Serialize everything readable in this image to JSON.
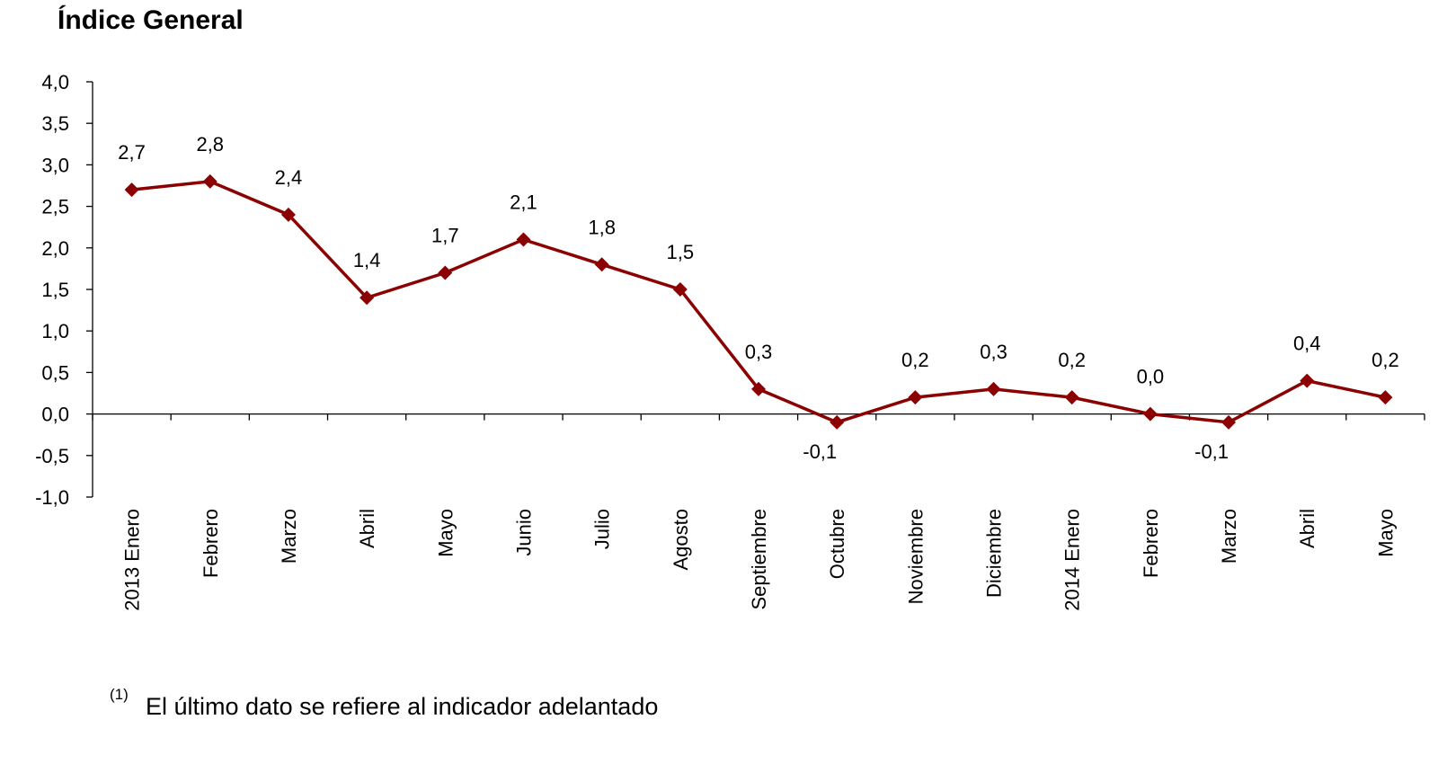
{
  "chart_data": {
    "type": "line",
    "title": "Índice General",
    "categories": [
      "2013 Enero",
      "Febrero",
      "Marzo",
      "Abril",
      "Mayo",
      "Junio",
      "Julio",
      "Agosto",
      "Septiembre",
      "Octubre",
      "Noviembre",
      "Diciembre",
      "2014 Enero",
      "Febrero",
      "Marzo",
      "Abril",
      "Mayo"
    ],
    "series": [
      {
        "color": "#8b0000",
        "values": [
          2.7,
          2.8,
          2.4,
          1.4,
          1.7,
          2.1,
          1.8,
          1.5,
          0.3,
          -0.1,
          0.2,
          0.3,
          0.2,
          0.0,
          -0.1,
          0.4,
          0.2
        ],
        "value_labels": [
          "2,7",
          "2,8",
          "2,4",
          "1,4",
          "1,7",
          "2,1",
          "1,8",
          "1,5",
          "0,3",
          "-0,1",
          "0,2",
          "0,3",
          "0,2",
          "0,0",
          "-0,1",
          "0,4",
          "0,2"
        ]
      }
    ],
    "ylim": [
      -1,
      4
    ],
    "yticks": [
      {
        "value": -1,
        "label": "-1,0"
      },
      {
        "value": -0.5,
        "label": "-0,5"
      },
      {
        "value": 0,
        "label": "0,0"
      },
      {
        "value": 0.5,
        "label": "0,5"
      },
      {
        "value": 1,
        "label": "1,0"
      },
      {
        "value": 1.5,
        "label": "1,5"
      },
      {
        "value": 2,
        "label": "2,0"
      },
      {
        "value": 2.5,
        "label": "2,5"
      },
      {
        "value": 3,
        "label": "3,0"
      },
      {
        "value": 3.5,
        "label": "3,5"
      },
      {
        "value": 4,
        "label": "4,0"
      }
    ],
    "footnote": {
      "marker": "(1)",
      "text": "El último dato se refiere al indicador adelantado"
    }
  }
}
